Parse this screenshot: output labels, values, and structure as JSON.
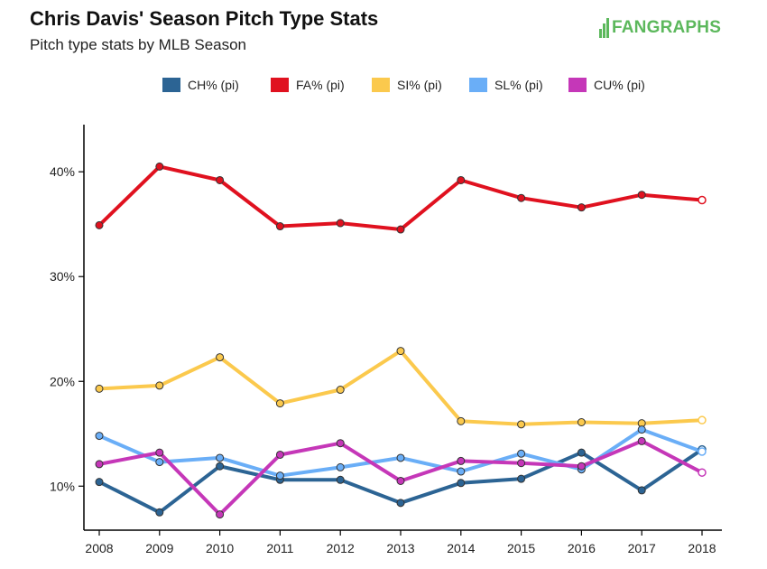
{
  "header": {
    "title": "Chris Davis' Season Pitch Type Stats",
    "subtitle": "Pitch type stats by MLB Season",
    "logo_text": "FANGRAPHS"
  },
  "colors": {
    "brand": "#5cb85c"
  },
  "chart_data": {
    "type": "line",
    "title": "Chris Davis' Season Pitch Type Stats",
    "subtitle": "Pitch type stats by MLB Season",
    "xlabel": "",
    "ylabel": "",
    "x": [
      2008,
      2009,
      2010,
      2011,
      2012,
      2013,
      2014,
      2015,
      2016,
      2017,
      2018
    ],
    "x_tick_labels": [
      "2008",
      "2009",
      "2010",
      "2011",
      "2012",
      "2013",
      "2014",
      "2015",
      "2016",
      "2017",
      "2018"
    ],
    "y_ticks": [
      10,
      20,
      30,
      40
    ],
    "y_tick_labels": [
      "10%",
      "20%",
      "30%",
      "40%"
    ],
    "ylim": [
      5.8,
      44.5
    ],
    "grid": false,
    "legend_position": "top",
    "series": [
      {
        "name": "CH% (pi)",
        "color": "#2c6494",
        "values": [
          10.4,
          7.5,
          11.9,
          10.6,
          10.6,
          8.4,
          10.3,
          10.7,
          13.2,
          9.6,
          13.5
        ]
      },
      {
        "name": "FA% (pi)",
        "color": "#e0111f",
        "values": [
          34.9,
          40.5,
          39.2,
          34.8,
          35.1,
          34.5,
          39.2,
          37.5,
          36.6,
          37.8,
          37.3
        ]
      },
      {
        "name": "SI% (pi)",
        "color": "#fbc94d",
        "values": [
          19.3,
          19.6,
          22.3,
          17.9,
          19.2,
          22.9,
          16.2,
          15.9,
          16.1,
          16.0,
          16.3
        ]
      },
      {
        "name": "SL% (pi)",
        "color": "#6aaef7",
        "values": [
          14.8,
          12.3,
          12.7,
          11.0,
          11.8,
          12.7,
          11.4,
          13.1,
          11.6,
          15.4,
          13.3
        ]
      },
      {
        "name": "CU% (pi)",
        "color": "#c537b8",
        "values": [
          12.1,
          13.2,
          7.3,
          13.0,
          14.1,
          10.5,
          12.4,
          12.2,
          11.9,
          14.3,
          11.3
        ]
      }
    ]
  }
}
